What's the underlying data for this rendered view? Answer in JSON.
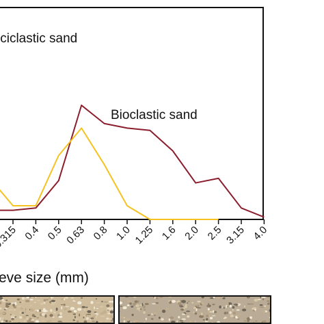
{
  "chart_data": {
    "type": "line",
    "title": "",
    "xlabel": "eve size (mm)",
    "ylabel": "",
    "x_type": "category",
    "categories": [
      "0.315",
      "0.4",
      "0.5",
      "0.63",
      "0.8",
      "1.0",
      "1.25",
      "1.6",
      "2.0",
      "2.5",
      "3.15",
      "4.0"
    ],
    "x_tick_labels": [
      "0.315",
      "0.4",
      "0.5",
      "0.63",
      "0.8",
      "1.0",
      "1.25",
      "1.6",
      "2.0",
      "2.5",
      "3.15",
      "4.0"
    ],
    "series": [
      {
        "name": "Bioclastic sand",
        "color": "#8b1d2c",
        "values": [
          4,
          5,
          17,
          50,
          42,
          40,
          39,
          30,
          16,
          18,
          5,
          1
        ]
      },
      {
        "name": "",
        "color": "#f5c220",
        "values": [
          6,
          6,
          28,
          40,
          24,
          6,
          0,
          0,
          0,
          0,
          null,
          null
        ]
      }
    ],
    "annotations": [
      "iciclastic sand",
      "Bioclastic sand"
    ],
    "ylim": [
      0,
      100
    ],
    "grid": false,
    "legend": "none"
  },
  "photos": [
    {
      "color": "#cdbb9b"
    },
    {
      "color": "#b9ab95"
    }
  ]
}
